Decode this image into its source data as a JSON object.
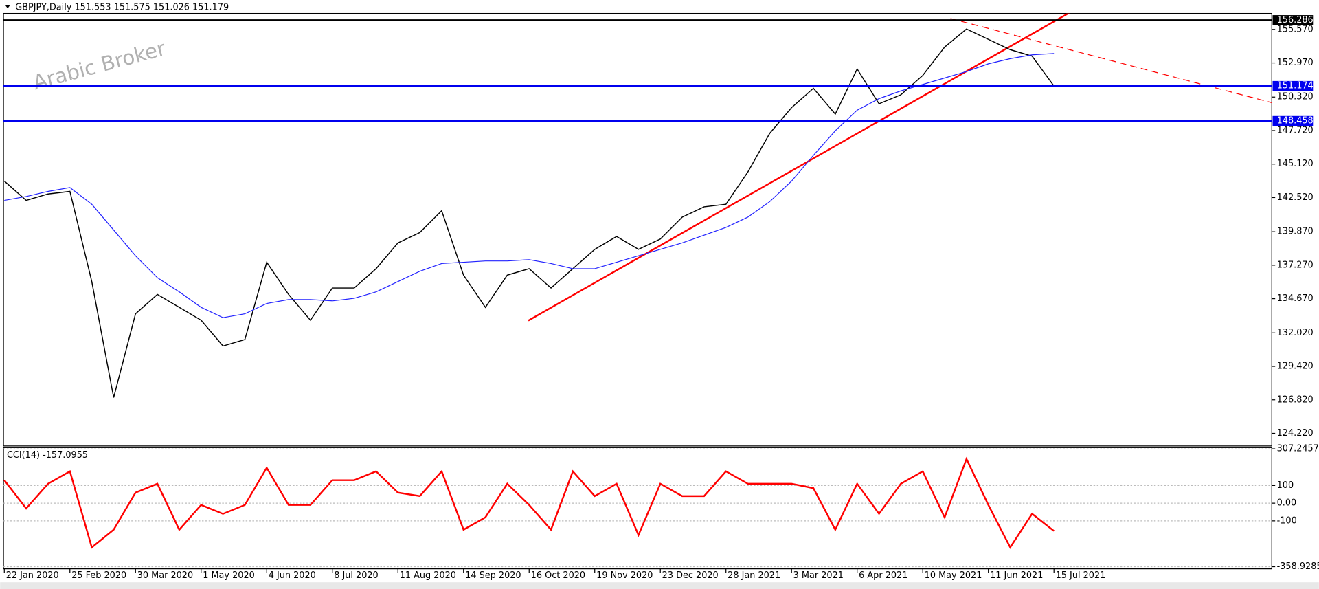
{
  "chart_data": [
    {
      "type": "line",
      "title": "GBPJPY,Daily  151.553 151.575 151.026 151.179",
      "watermark": "Arabic Broker",
      "categories": [
        "22 Jan 2020",
        null,
        null,
        "25 Feb 2020",
        null,
        null,
        "30 Mar 2020",
        null,
        null,
        "1 May 2020",
        null,
        null,
        "4 Jun 2020",
        null,
        null,
        "8 Jul 2020",
        null,
        null,
        "11 Aug 2020",
        null,
        null,
        "14 Sep 2020",
        null,
        null,
        "16 Oct 2020",
        null,
        null,
        "19 Nov 2020",
        null,
        null,
        "23 Dec 2020",
        null,
        null,
        "28 Jan 2021",
        null,
        null,
        "3 Mar 2021",
        null,
        null,
        "6 Apr 2021",
        null,
        null,
        "10 May 2021",
        null,
        null,
        "11 Jun 2021",
        null,
        null,
        "15 Jul 2021",
        null,
        null,
        null,
        null,
        null,
        null,
        null,
        null,
        null
      ],
      "series": [
        {
          "color": "#000000",
          "values": [
            143.8,
            142.3,
            142.8,
            143.0,
            136.0,
            127.0,
            133.5,
            135.0,
            134.0,
            133.0,
            131.0,
            131.5,
            137.5,
            135.0,
            133.0,
            135.5,
            135.5,
            137.0,
            139.0,
            139.8,
            141.5,
            136.5,
            134.0,
            136.5,
            137.0,
            135.5,
            137.0,
            138.5,
            139.5,
            138.5,
            139.3,
            141.0,
            141.8,
            142.0,
            144.5,
            147.5,
            149.5,
            151.0,
            149.0,
            152.5,
            149.8,
            150.5,
            152.0,
            154.2,
            155.6,
            154.8,
            154.0,
            153.5,
            151.179,
            null,
            null,
            null,
            null,
            null,
            null,
            null,
            null,
            null
          ]
        },
        {
          "color": "#2222ff",
          "values": [
            142.3,
            142.6,
            143.0,
            143.3,
            142.0,
            140.0,
            138.0,
            136.3,
            135.2,
            134.0,
            133.2,
            133.5,
            134.3,
            134.6,
            134.6,
            134.5,
            134.7,
            135.2,
            136.0,
            136.8,
            137.4,
            137.5,
            137.6,
            137.6,
            137.7,
            137.4,
            137.0,
            137.0,
            137.5,
            138.0,
            138.5,
            139.0,
            139.6,
            140.2,
            141.0,
            142.2,
            143.8,
            145.8,
            147.7,
            149.3,
            150.2,
            150.8,
            151.3,
            151.8,
            152.3,
            152.9,
            153.3,
            153.6,
            153.7,
            null,
            null,
            null,
            null,
            null,
            null,
            null,
            null,
            null
          ]
        }
      ],
      "ylim": [
        123.24,
        156.81
      ],
      "yticks": [
        {
          "value": 155.57,
          "label": "155.570"
        },
        {
          "value": 152.97,
          "label": "152.970"
        },
        {
          "value": 150.32,
          "label": "150.320"
        },
        {
          "value": 147.72,
          "label": "147.720"
        },
        {
          "value": 145.12,
          "label": "145.120"
        },
        {
          "value": 142.52,
          "label": "142.520"
        },
        {
          "value": 139.87,
          "label": "139.870"
        },
        {
          "value": 137.27,
          "label": "137.270"
        },
        {
          "value": 134.67,
          "label": "134.670"
        },
        {
          "value": 132.02,
          "label": "132.020"
        },
        {
          "value": 129.42,
          "label": "129.420"
        },
        {
          "value": 126.82,
          "label": "126.820"
        },
        {
          "value": 124.22,
          "label": "124.220"
        }
      ],
      "levels": [
        {
          "value": 156.286,
          "color": "#000000"
        },
        {
          "value": 151.174,
          "color": "#0000ee"
        },
        {
          "value": 148.458,
          "color": "#0000ee"
        }
      ]
    },
    {
      "type": "line",
      "title": "CCI(14) -157.0955",
      "series": [
        {
          "color": "#ff0000",
          "values": [
            130,
            -30,
            110,
            180,
            -250,
            -150,
            60,
            110,
            -150,
            -10,
            -60,
            -10,
            200,
            -10,
            -10,
            130,
            130,
            180,
            60,
            40,
            180,
            -150,
            -80,
            110,
            -10,
            -150,
            180,
            40,
            110,
            -180,
            110,
            40,
            40,
            180,
            110,
            110,
            110,
            85,
            -150,
            110,
            -60,
            110,
            180,
            -80,
            250,
            -10,
            -250,
            -60,
            -157.0955,
            null,
            null,
            null,
            null,
            null,
            null,
            null,
            null,
            null
          ]
        }
      ],
      "ylim": [
        -371,
        314
      ],
      "yticks": [
        307.2457,
        100,
        {
          "value": 0,
          "label": "0.00"
        },
        -100,
        -358.9285
      ],
      "grid": true
    }
  ]
}
